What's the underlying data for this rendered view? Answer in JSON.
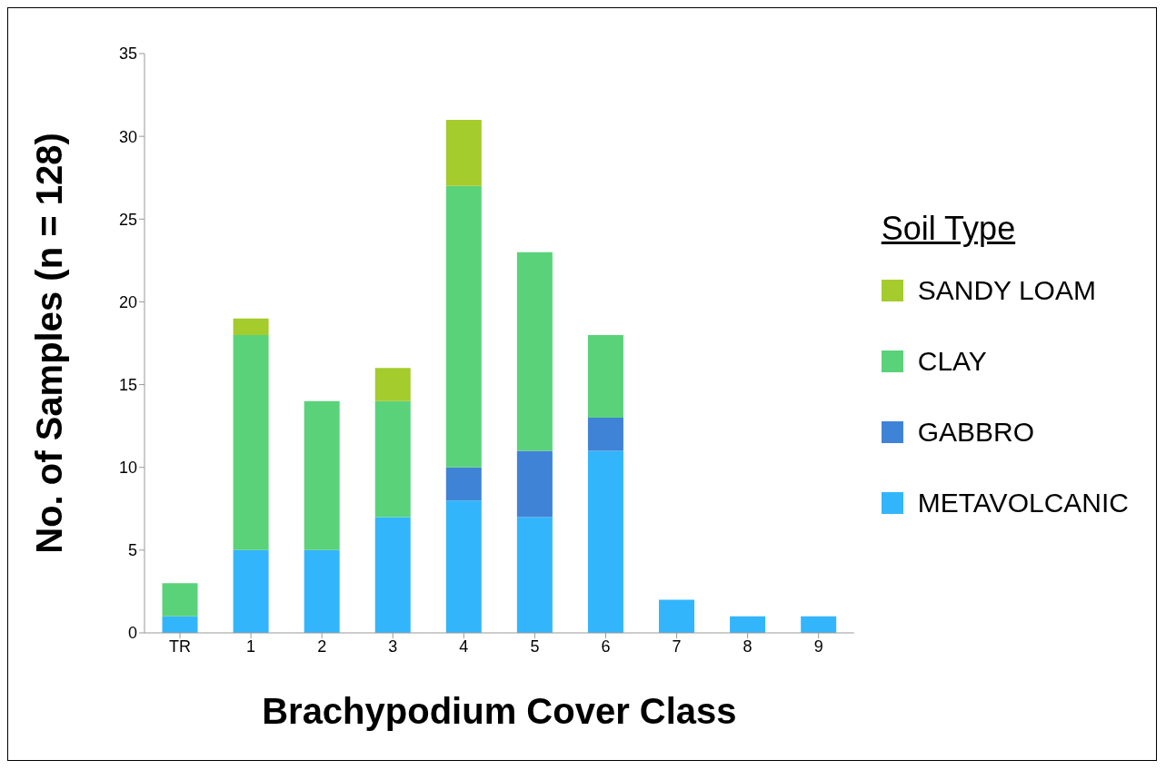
{
  "chart_data": {
    "type": "bar",
    "xlabel": "Brachypodium Cover Class",
    "ylabel": "No. of Samples (n = 128)",
    "legend_title": "Soil Type",
    "categories": [
      "TR",
      "1",
      "2",
      "3",
      "4",
      "5",
      "6",
      "7",
      "8",
      "9"
    ],
    "series": [
      {
        "name": "METAVOLCANIC",
        "color": "#33b5fb",
        "values": [
          1,
          5,
          5,
          7,
          8,
          7,
          11,
          2,
          1,
          1
        ]
      },
      {
        "name": "GABBRO",
        "color": "#3f83d6",
        "values": [
          0,
          0,
          0,
          0,
          2,
          4,
          2,
          0,
          0,
          0
        ]
      },
      {
        "name": "CLAY",
        "color": "#5ad27a",
        "values": [
          2,
          13,
          9,
          7,
          17,
          12,
          5,
          0,
          0,
          0
        ]
      },
      {
        "name": "SANDY LOAM",
        "color": "#a4cc2c",
        "values": [
          0,
          1,
          0,
          2,
          4,
          0,
          0,
          0,
          0,
          0
        ]
      }
    ],
    "stacked": true,
    "ylim": [
      0,
      35
    ],
    "yticks": [
      0,
      5,
      10,
      15,
      20,
      25,
      30,
      35
    ],
    "grid": false,
    "legend": "right"
  }
}
